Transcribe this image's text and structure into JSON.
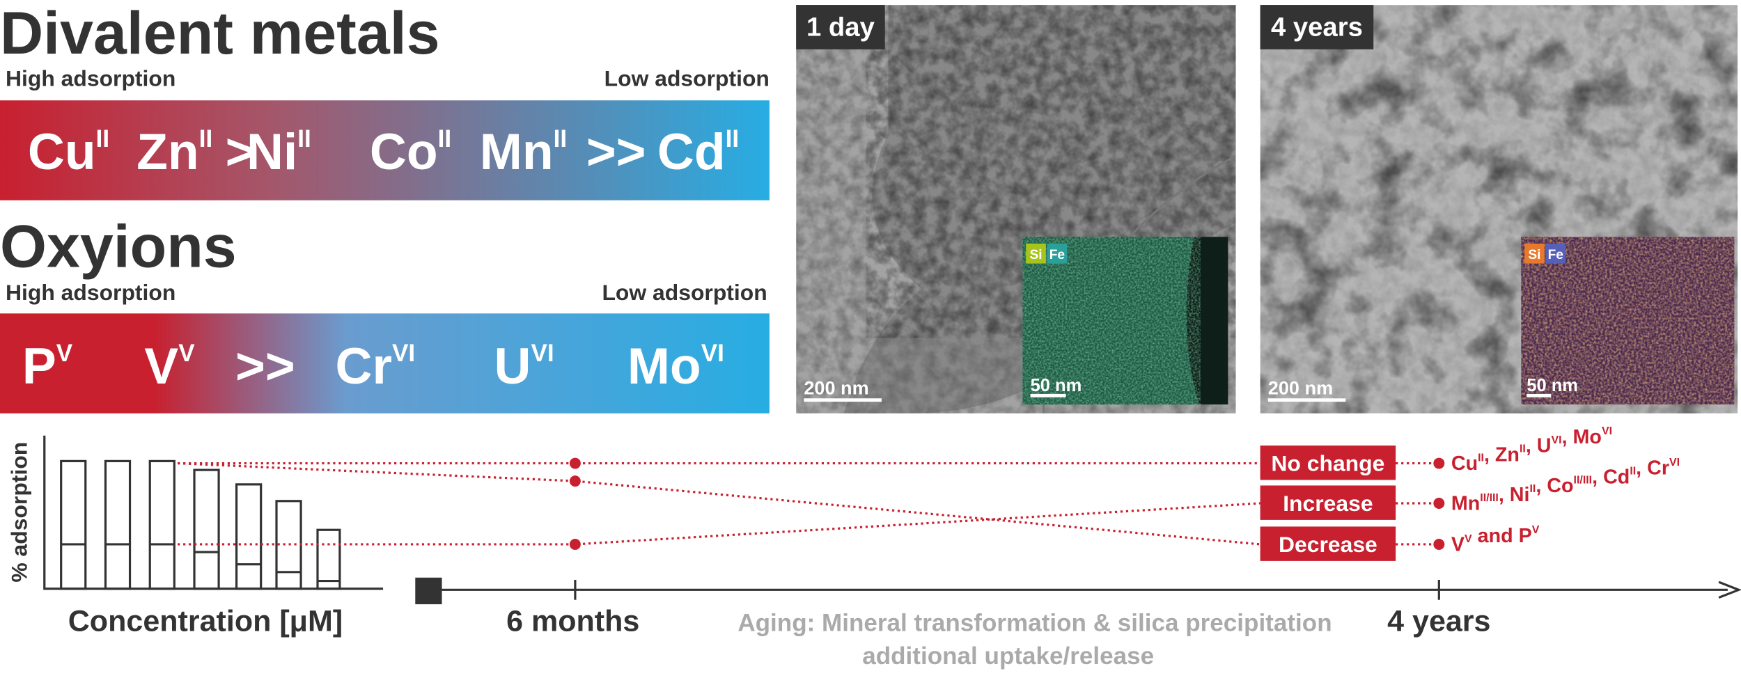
{
  "divalent": {
    "title": "Divalent metals",
    "high": "High adsorption",
    "low": "Low adsorption",
    "items": [
      {
        "text": "Cu",
        "sup": "II"
      },
      {
        "text": "Zn",
        "sup": "II"
      },
      {
        "text": ">"
      },
      {
        "text": "Ni",
        "sup": "II"
      },
      {
        "text": "Co",
        "sup": "II"
      },
      {
        "text": "Mn",
        "sup": "II"
      },
      {
        "text": ">>"
      },
      {
        "text": "Cd",
        "sup": "II"
      }
    ]
  },
  "oxyions": {
    "title": "Oxyions",
    "high": "High adsorption",
    "low": "Low adsorption",
    "items": [
      {
        "text": "P",
        "sup": "V"
      },
      {
        "text": "V",
        "sup": "V"
      },
      {
        "text": ">>"
      },
      {
        "text": "Cr",
        "sup": "VI"
      },
      {
        "text": "U",
        "sup": "VI"
      },
      {
        "text": "Mo",
        "sup": "VI"
      }
    ]
  },
  "images": [
    {
      "label": "1 day",
      "scale": "200 nm",
      "inset_scale": "50 nm",
      "elements": [
        "Si",
        "Fe"
      ]
    },
    {
      "label": "4 years",
      "scale": "200 nm",
      "inset_scale": "50 nm",
      "elements": [
        "Si",
        "Fe"
      ]
    }
  ],
  "aging": {
    "y_label": "% adsorption",
    "x_label": "Concentration [μM]",
    "ticks": [
      "6 months",
      "4 years"
    ],
    "caption": [
      "Aging: Mineral transformation & silica precipitation",
      "additional uptake/release"
    ],
    "outcomes": [
      {
        "label": "No change",
        "metals": [
          {
            "text": "Cu",
            "sup": "II"
          },
          {
            "text": ", Zn",
            "sup": "II"
          },
          {
            "text": ", U",
            "sup": "VI"
          },
          {
            "text": ", Mo",
            "sup": "VI"
          }
        ]
      },
      {
        "label": "Increase",
        "metals": [
          {
            "text": "Mn",
            "sup": "II/III"
          },
          {
            "text": ", Ni",
            "sup": "II"
          },
          {
            "text": ", Co",
            "sup": "II/III"
          },
          {
            "text": ", Cd",
            "sup": "II"
          },
          {
            "text": ", Cr",
            "sup": "VI"
          }
        ]
      },
      {
        "label": "Decrease",
        "metals": [
          {
            "text": "V",
            "sup": "V"
          },
          {
            "text": " and P",
            "sup": "V"
          }
        ]
      }
    ]
  }
}
